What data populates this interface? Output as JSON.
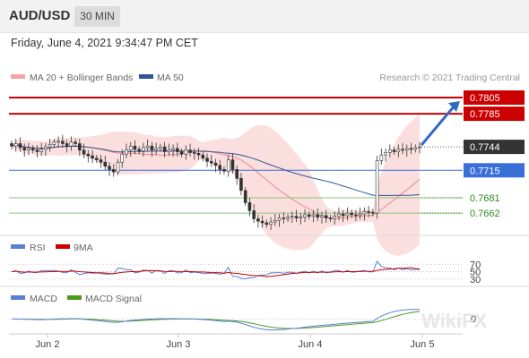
{
  "header": {
    "symbol": "AUD/USD",
    "timeframe": "30 MIN",
    "timestamp": "Friday, June 4, 2021 9:34:47 PM CET"
  },
  "legend": {
    "ma20_bb": "MA 20 + Bollinger Bands",
    "ma50": "MA 50",
    "credit": "Research © 2021 Trading Central",
    "rsi": "RSI",
    "rsi_ma": "9MA",
    "macd": "MACD",
    "macd_signal": "MACD Signal"
  },
  "watermark": "WikiFX",
  "colors": {
    "bollinger": "#f4a3a3",
    "ma50": "#2f5597",
    "resistance": "#cc0000",
    "current": "#333333",
    "pivot": "#3a6fd8",
    "support": "#2e8b1e",
    "candle": "#333333",
    "arrow": "#2f6bc4"
  },
  "chart_data": {
    "type": "candlestick",
    "x_ticks": [
      "Jun 2",
      "Jun 3",
      "Jun 4",
      "Jun 5"
    ],
    "levels": [
      {
        "name": "resistance-2",
        "value": 0.7805,
        "label": "0.7805",
        "style": "red-box"
      },
      {
        "name": "resistance-1",
        "value": 0.7785,
        "label": "0.7785",
        "style": "red-box"
      },
      {
        "name": "last-price",
        "value": 0.7744,
        "label": "0.7744",
        "style": "dark-box"
      },
      {
        "name": "pivot",
        "value": 0.7715,
        "label": "0.7715",
        "style": "blue-box"
      },
      {
        "name": "support-1",
        "value": 0.7681,
        "label": "0.7681",
        "style": "green-text"
      },
      {
        "name": "support-2",
        "value": 0.7662,
        "label": "0.7662",
        "style": "green-text"
      }
    ],
    "forecast": {
      "from": 0.7744,
      "to": 0.7805
    },
    "close": [
      0.7745,
      0.7748,
      0.7743,
      0.774,
      0.7742,
      0.774,
      0.7738,
      0.7741,
      0.7744,
      0.7747,
      0.775,
      0.7751,
      0.7748,
      0.7745,
      0.775,
      0.7748,
      0.774,
      0.7735,
      0.7733,
      0.773,
      0.7728,
      0.7725,
      0.772,
      0.7716,
      0.7713,
      0.7725,
      0.7735,
      0.774,
      0.7745,
      0.7741,
      0.7739,
      0.7743,
      0.7745,
      0.774,
      0.7742,
      0.7744,
      0.7738,
      0.774,
      0.7742,
      0.7738,
      0.7735,
      0.774,
      0.7737,
      0.7736,
      0.7734,
      0.773,
      0.7726,
      0.7724,
      0.7721,
      0.7716,
      0.7714,
      0.7728,
      0.7716,
      0.7705,
      0.769,
      0.7675,
      0.7665,
      0.7655,
      0.7652,
      0.765,
      0.7648,
      0.7651,
      0.7653,
      0.7656,
      0.7655,
      0.7657,
      0.7658,
      0.7656,
      0.7657,
      0.766,
      0.7658,
      0.766,
      0.7657,
      0.7659,
      0.7656,
      0.7655,
      0.7658,
      0.7661,
      0.7659,
      0.7662,
      0.766,
      0.7659,
      0.7661,
      0.7664,
      0.7663,
      0.7662,
      0.7727,
      0.7734,
      0.7737,
      0.774,
      0.7738,
      0.7741,
      0.774,
      0.7742,
      0.7741,
      0.7743,
      0.7744
    ],
    "y_range": [
      0.764,
      0.7815
    ],
    "rsi": {
      "levels": [
        70,
        50,
        30
      ]
    },
    "macd": {
      "zero_label": "0"
    }
  }
}
